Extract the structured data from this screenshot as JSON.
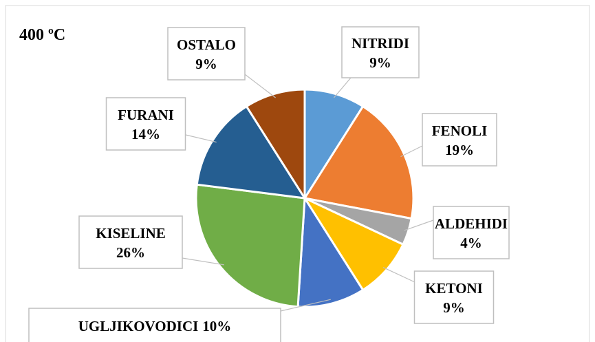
{
  "chart_data": {
    "type": "pie",
    "title": "400 ºC",
    "categories": [
      "NITRIDI",
      "FENOLI",
      "ALDEHIDI",
      "KETONI",
      "UGLJIKOVODICI",
      "KISELINE",
      "FURANI",
      "OSTALO"
    ],
    "values": [
      9,
      19,
      4,
      9,
      10,
      26,
      14,
      9
    ],
    "value_labels": [
      "9%",
      "19%",
      "4%",
      "9%",
      "10%",
      "26%",
      "14%",
      "9%"
    ],
    "colors": [
      "#5b9bd5",
      "#ed7d31",
      "#a5a5a5",
      "#ffc000",
      "#4472c4",
      "#70ad47",
      "#255e91",
      "#9e480e"
    ]
  }
}
